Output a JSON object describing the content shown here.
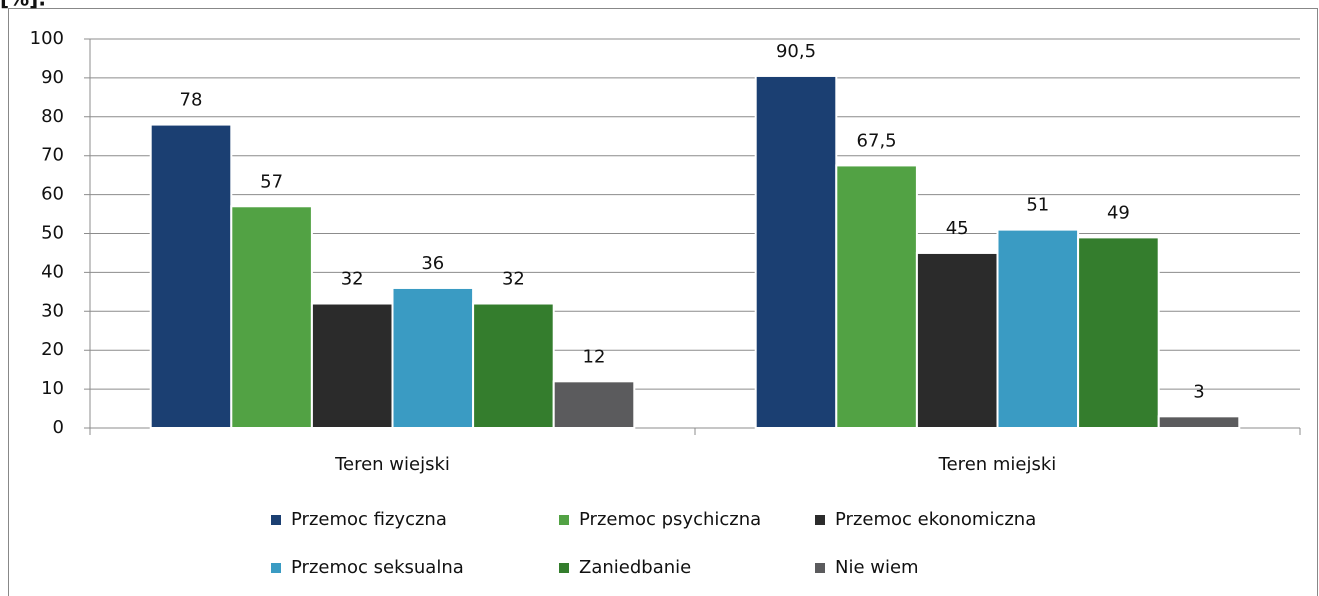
{
  "chart_data": {
    "type": "bar",
    "ylabel": "[%].",
    "categories": [
      "Teren wiejski",
      "Teren miejski"
    ],
    "series": [
      {
        "name": "Przemoc fizyczna",
        "color": "#1b3f72",
        "values": [
          78,
          90.5
        ],
        "value_labels": [
          "78",
          "90,5"
        ]
      },
      {
        "name": "Przemoc psychiczna",
        "color": "#52a244",
        "values": [
          57,
          67.5
        ],
        "value_labels": [
          "57",
          "67,5"
        ]
      },
      {
        "name": "Przemoc ekonomiczna",
        "color": "#2b2b2b",
        "values": [
          32,
          45
        ],
        "value_labels": [
          "32",
          "45"
        ]
      },
      {
        "name": "Przemoc seksualna",
        "color": "#3a9bc3",
        "values": [
          36,
          51
        ],
        "value_labels": [
          "36",
          "51"
        ]
      },
      {
        "name": "Zaniedbanie",
        "color": "#347d2d",
        "values": [
          32,
          49
        ],
        "value_labels": [
          "32",
          "49"
        ]
      },
      {
        "name": "Nie wiem",
        "color": "#5b5b5d",
        "values": [
          12,
          3
        ],
        "value_labels": [
          "12",
          "3"
        ]
      }
    ],
    "ylim": [
      0,
      100
    ],
    "yticks": [
      0,
      10,
      20,
      30,
      40,
      50,
      60,
      70,
      80,
      90,
      100
    ],
    "grid": true,
    "legend": "bottom"
  }
}
